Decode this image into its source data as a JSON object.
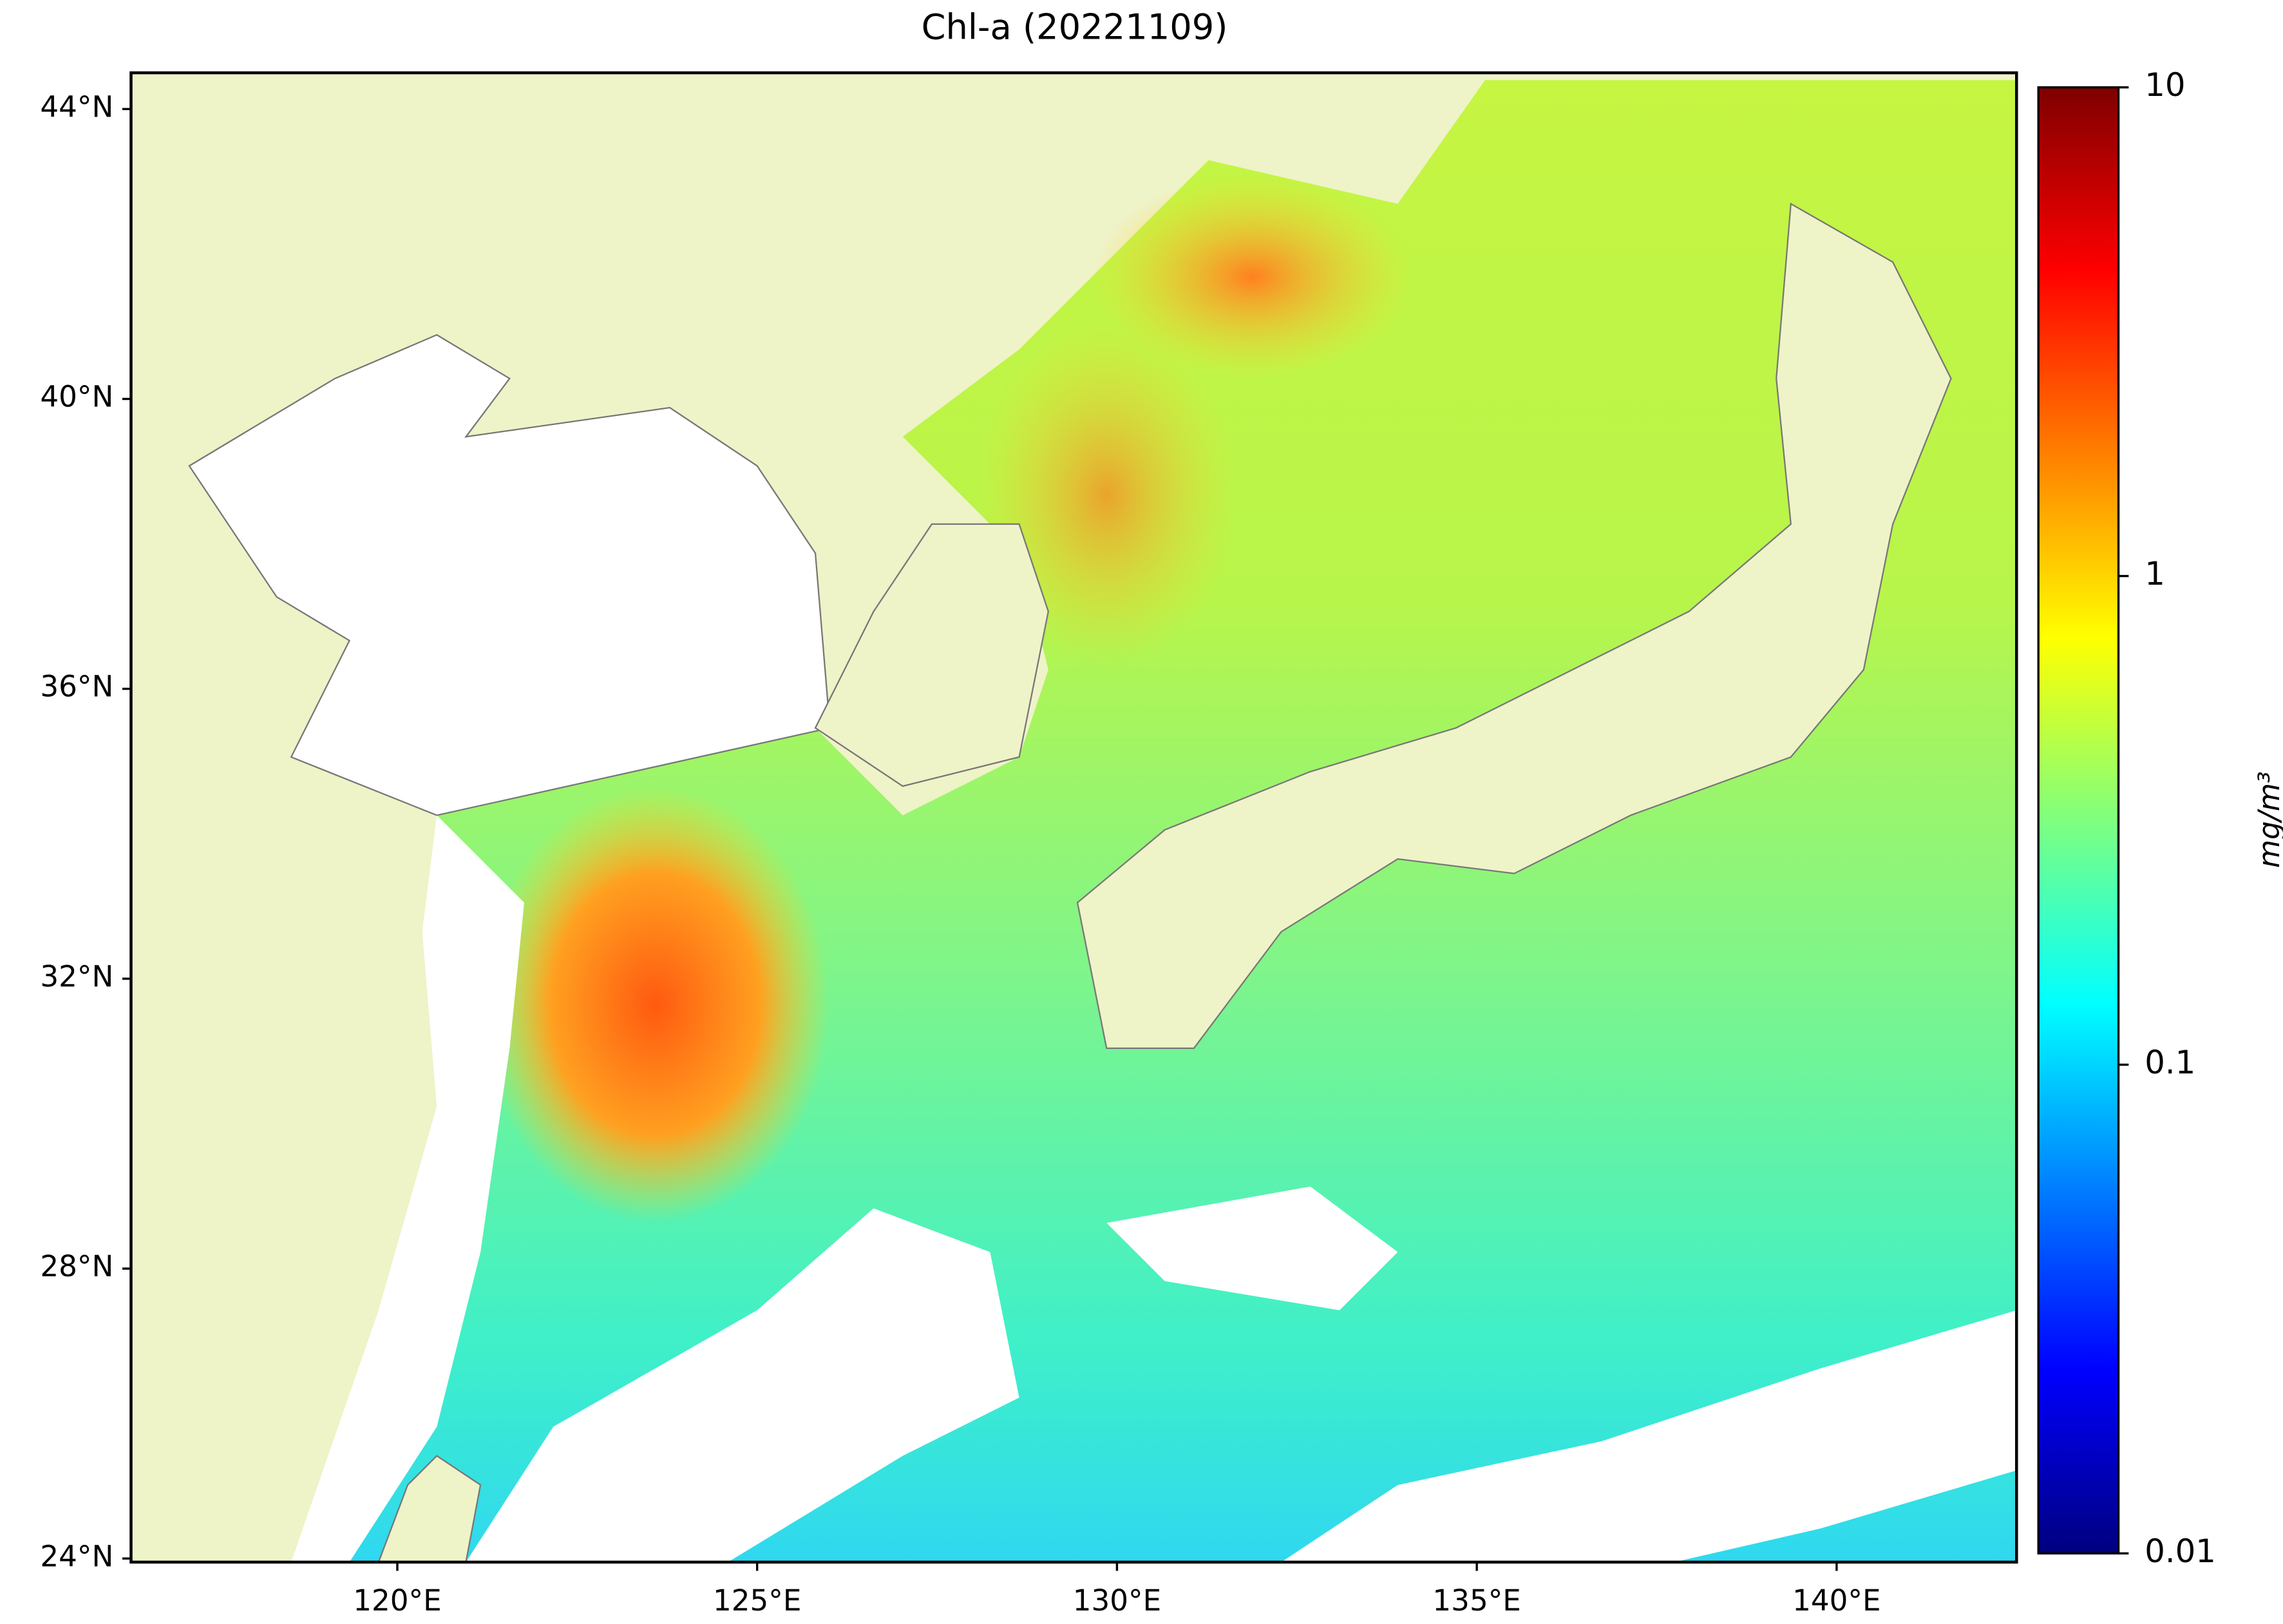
{
  "chart_data": {
    "type": "map",
    "title": "Chl-a (20221109)",
    "xlim": [
      116.3,
      142.5
    ],
    "ylim": [
      23.95,
      44.5
    ],
    "xticks": [
      {
        "value": 120,
        "label": "120°E"
      },
      {
        "value": 125,
        "label": "125°E"
      },
      {
        "value": 130,
        "label": "130°E"
      },
      {
        "value": 135,
        "label": "135°E"
      },
      {
        "value": 140,
        "label": "140°E"
      }
    ],
    "yticks": [
      {
        "value": 24,
        "label": "24°N"
      },
      {
        "value": 28,
        "label": "28°N"
      },
      {
        "value": 32,
        "label": "32°N"
      },
      {
        "value": 36,
        "label": "36°N"
      },
      {
        "value": 40,
        "label": "40°N"
      },
      {
        "value": 44,
        "label": "44°N"
      }
    ],
    "colorbar": {
      "label": "mg/m³",
      "scale": "log",
      "lim": [
        0.01,
        10
      ],
      "ticks": [
        0.01,
        0.1,
        1,
        10
      ],
      "colors": [
        "#00007f",
        "#0000ff",
        "#007fff",
        "#00ffff",
        "#7fff7f",
        "#ffff00",
        "#ff7f00",
        "#ff0000",
        "#7f0000"
      ]
    }
  }
}
